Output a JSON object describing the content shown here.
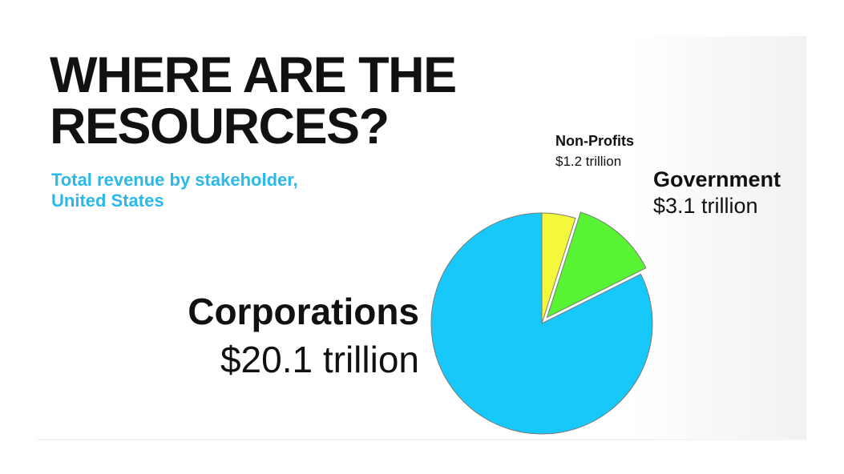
{
  "chart_data": {
    "type": "pie",
    "title": "WHERE ARE THE RESOURCES?",
    "subtitle": "Total revenue by stakeholder, United States",
    "categories": [
      "Non-Profits",
      "Government",
      "Corporations"
    ],
    "values": [
      1.2,
      3.1,
      20.1
    ],
    "value_labels": [
      "$1.2 trillion",
      "$3.1 trillion",
      "$20.1 trillion"
    ],
    "colors": [
      "#f4f83a",
      "#58f333",
      "#17c9fa"
    ]
  }
}
